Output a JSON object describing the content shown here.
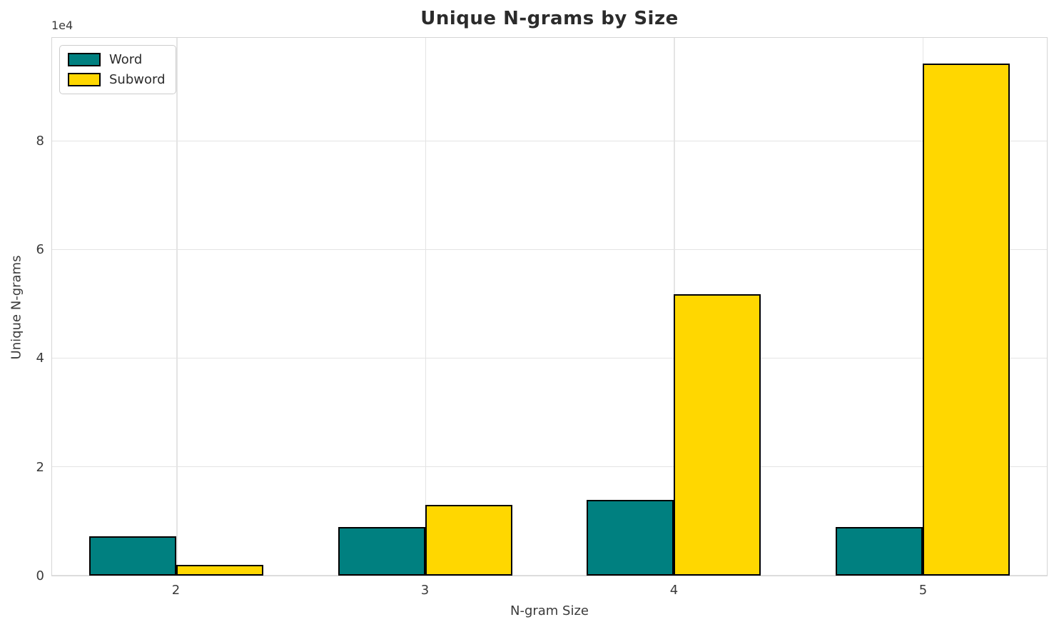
{
  "title": "Unique N-grams by Size",
  "axes": {
    "xlabel": "N-gram Size",
    "ylabel": "Unique N-grams",
    "offset_text": "1e4",
    "y_tick_labels": [
      "0",
      "2",
      "4",
      "6",
      "8"
    ],
    "x_tick_labels": [
      "2",
      "3",
      "4",
      "5"
    ]
  },
  "legend": {
    "items": [
      {
        "label": "Word",
        "color": "#008080"
      },
      {
        "label": "Subword",
        "color": "#FFD700"
      }
    ]
  },
  "colors": {
    "word": "#008080",
    "subword": "#FFD700",
    "bar_edge": "#000000",
    "grid": "#e4e4e4",
    "text": "#3a3a3a"
  },
  "chart_data": {
    "type": "bar",
    "title": "Unique N-grams by Size",
    "xlabel": "N-gram Size",
    "ylabel": "Unique N-grams",
    "categories": [
      "2",
      "3",
      "4",
      "5"
    ],
    "series": [
      {
        "name": "Word",
        "color": "#008080",
        "values": [
          7300,
          8900,
          13900,
          8900
        ]
      },
      {
        "name": "Subword",
        "color": "#FFD700",
        "values": [
          2000,
          13000,
          51900,
          94400
        ]
      }
    ],
    "yticks": [
      0,
      20000,
      40000,
      60000,
      80000
    ],
    "ylim": [
      0,
      99100
    ],
    "grid": true,
    "legend_position": "upper left",
    "bar_edge_color": "#000000",
    "bar_group_width": 0.7
  }
}
